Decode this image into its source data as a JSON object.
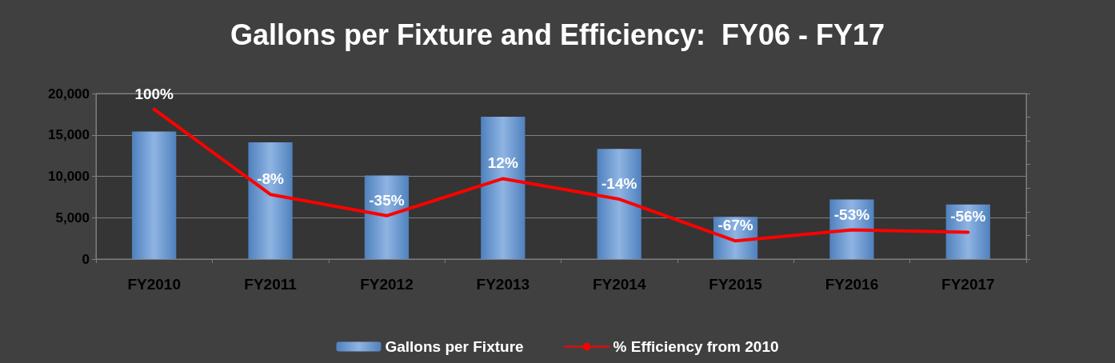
{
  "chart_data": {
    "type": "bar",
    "title": "Gallons per Fixture and Efficiency:  FY06 - FY17",
    "categories": [
      "FY2010",
      "FY2011",
      "FY2012",
      "FY2013",
      "FY2014",
      "FY2015",
      "FY2016",
      "FY2017"
    ],
    "series": [
      {
        "name": "Gallons per Fixture",
        "color": "#4f81bd",
        "values": [
          15400,
          14100,
          10100,
          17200,
          13300,
          5100,
          7200,
          6600
        ]
      },
      {
        "name": "% Efficiency from 2010",
        "type": "line",
        "axis": "y2",
        "color": "#ff0000",
        "values": [
          100,
          -8,
          -35,
          12,
          -14,
          -67,
          -53,
          -56
        ],
        "value_labels": [
          "100%",
          "-8%",
          "-35%",
          "12%",
          "-14%",
          "-67%",
          "-53%",
          "-56%"
        ]
      }
    ],
    "ylim": [
      0,
      20000
    ],
    "yticks": [
      {
        "value": 0,
        "label": "0"
      },
      {
        "value": 5000,
        "label": "5,000"
      },
      {
        "value": 10000,
        "label": "10,000"
      },
      {
        "value": 15000,
        "label": "15,000"
      },
      {
        "value": 20000,
        "label": "20,000"
      }
    ],
    "grid": "y",
    "legend": "bottom",
    "marker": "none",
    "line_style": "solid"
  }
}
